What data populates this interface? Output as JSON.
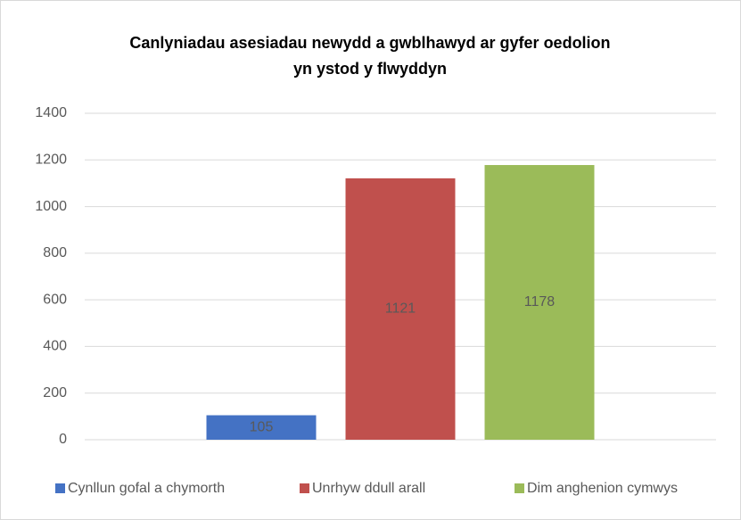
{
  "chart_data": {
    "type": "bar",
    "title": "Canlyniadau asesiadau newydd a gwblhawyd ar gyfer oedolion yn ystod y flwyddyn",
    "categories": [
      null
    ],
    "series": [
      {
        "name": "Cynllun gofal a chymorth",
        "color": "#4472c4",
        "values": [
          105
        ]
      },
      {
        "name": "Unrhyw ddull arall",
        "color": "#c0504d",
        "values": [
          1121
        ]
      },
      {
        "name": "Dim anghenion cymwys",
        "color": "#9bbb59",
        "values": [
          1178
        ]
      }
    ],
    "ylim": [
      0,
      1400
    ],
    "yticks": [
      0,
      200,
      400,
      600,
      800,
      1000,
      1200,
      1400
    ],
    "grid": true,
    "legend": "bottom",
    "data_labels": true
  }
}
